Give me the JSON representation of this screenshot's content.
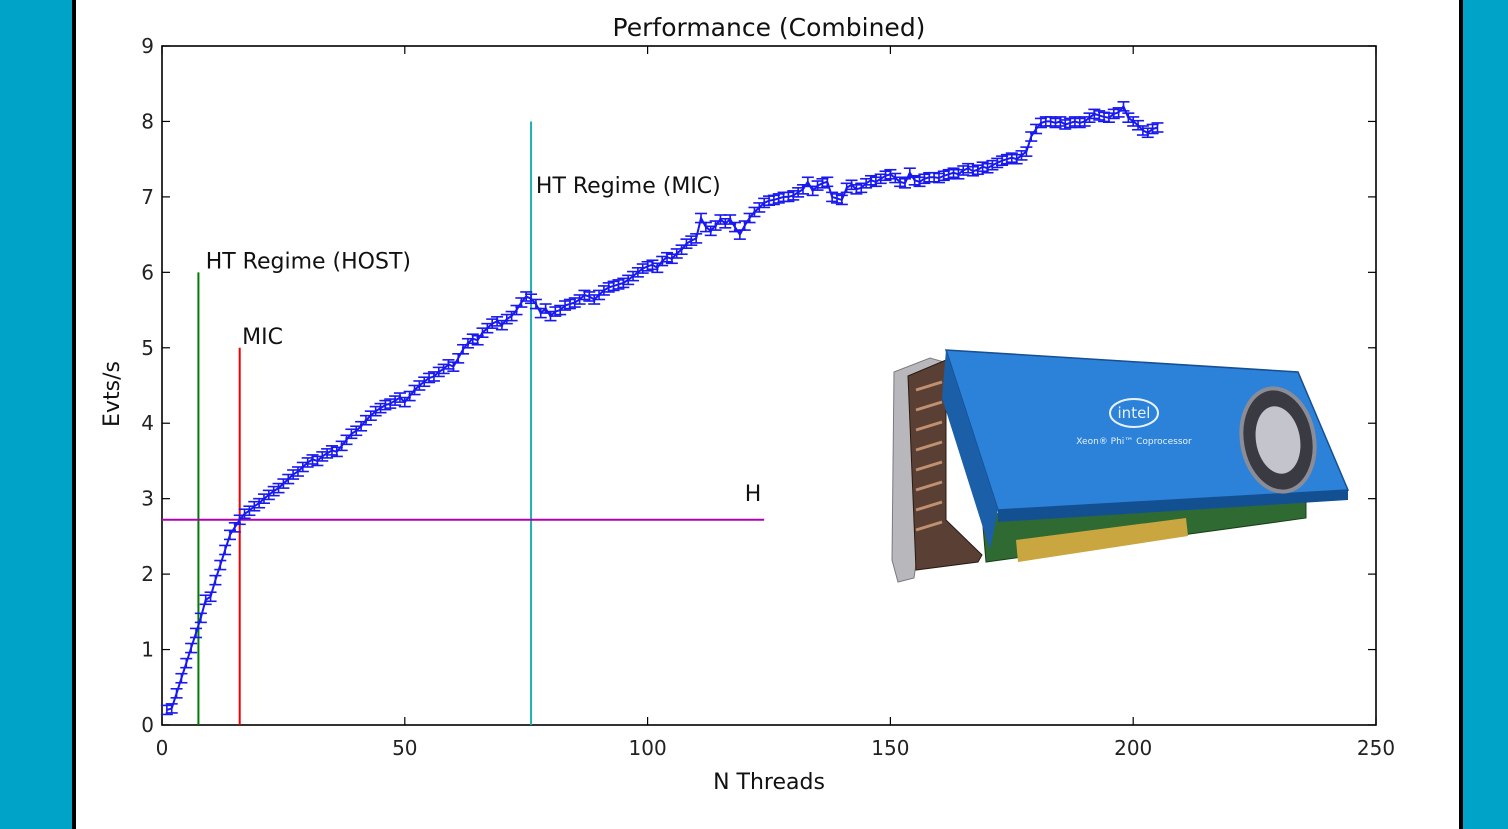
{
  "colors": {
    "frame": "#00a3c8",
    "series": "#1818f0",
    "host_line": "#007a00",
    "mic_line": "#ee0000",
    "mic_ht_line": "#20b0b0",
    "host_rate": "#b000b0"
  },
  "chart_data": {
    "type": "line",
    "title": "Performance (Combined)",
    "xlabel": "N Threads",
    "ylabel": "Evts/s",
    "xlim": [
      0,
      250
    ],
    "ylim": [
      0,
      9
    ],
    "xticks": [
      0,
      50,
      100,
      150,
      200,
      250
    ],
    "yticks": [
      0,
      1,
      2,
      3,
      4,
      5,
      6,
      7,
      8,
      9
    ],
    "grid": false,
    "series": [
      {
        "name": "",
        "style": "line with error bars",
        "error": 0.06,
        "points": [
          [
            1,
            0.2
          ],
          [
            2,
            0.22
          ],
          [
            3,
            0.42
          ],
          [
            4,
            0.62
          ],
          [
            5,
            0.82
          ],
          [
            6,
            1.02
          ],
          [
            7,
            1.22
          ],
          [
            8,
            1.42
          ],
          [
            9,
            1.66
          ],
          [
            10,
            1.7
          ],
          [
            11,
            1.92
          ],
          [
            12,
            2.12
          ],
          [
            13,
            2.32
          ],
          [
            14,
            2.52
          ],
          [
            15,
            2.62
          ],
          [
            16,
            2.72
          ],
          [
            17,
            2.8
          ],
          [
            18,
            2.84
          ],
          [
            19,
            2.9
          ],
          [
            20,
            2.94
          ],
          [
            21,
            3.0
          ],
          [
            22,
            3.05
          ],
          [
            23,
            3.1
          ],
          [
            24,
            3.14
          ],
          [
            25,
            3.2
          ],
          [
            26,
            3.26
          ],
          [
            27,
            3.32
          ],
          [
            28,
            3.36
          ],
          [
            29,
            3.42
          ],
          [
            30,
            3.48
          ],
          [
            31,
            3.52
          ],
          [
            32,
            3.5
          ],
          [
            33,
            3.56
          ],
          [
            34,
            3.6
          ],
          [
            35,
            3.64
          ],
          [
            36,
            3.62
          ],
          [
            37,
            3.7
          ],
          [
            38,
            3.78
          ],
          [
            39,
            3.86
          ],
          [
            40,
            3.9
          ],
          [
            41,
            3.96
          ],
          [
            42,
            4.04
          ],
          [
            43,
            4.1
          ],
          [
            44,
            4.16
          ],
          [
            45,
            4.2
          ],
          [
            46,
            4.24
          ],
          [
            47,
            4.26
          ],
          [
            48,
            4.3
          ],
          [
            49,
            4.34
          ],
          [
            50,
            4.28
          ],
          [
            51,
            4.36
          ],
          [
            52,
            4.44
          ],
          [
            53,
            4.5
          ],
          [
            54,
            4.55
          ],
          [
            55,
            4.6
          ],
          [
            56,
            4.62
          ],
          [
            57,
            4.68
          ],
          [
            58,
            4.72
          ],
          [
            59,
            4.78
          ],
          [
            60,
            4.75
          ],
          [
            61,
            4.86
          ],
          [
            62,
            4.98
          ],
          [
            63,
            5.06
          ],
          [
            64,
            5.12
          ],
          [
            65,
            5.1
          ],
          [
            66,
            5.2
          ],
          [
            67,
            5.26
          ],
          [
            68,
            5.32
          ],
          [
            69,
            5.35
          ],
          [
            70,
            5.3
          ],
          [
            71,
            5.38
          ],
          [
            72,
            5.42
          ],
          [
            73,
            5.5
          ],
          [
            74,
            5.6
          ],
          [
            75,
            5.68
          ],
          [
            76,
            5.65
          ],
          [
            77,
            5.58
          ],
          [
            78,
            5.46
          ],
          [
            79,
            5.52
          ],
          [
            80,
            5.42
          ],
          [
            81,
            5.48
          ],
          [
            82,
            5.5
          ],
          [
            83,
            5.56
          ],
          [
            84,
            5.58
          ],
          [
            85,
            5.6
          ],
          [
            86,
            5.64
          ],
          [
            87,
            5.7
          ],
          [
            88,
            5.68
          ],
          [
            89,
            5.64
          ],
          [
            90,
            5.7
          ],
          [
            91,
            5.76
          ],
          [
            92,
            5.8
          ],
          [
            93,
            5.82
          ],
          [
            94,
            5.84
          ],
          [
            95,
            5.86
          ],
          [
            96,
            5.9
          ],
          [
            97,
            5.95
          ],
          [
            98,
            6.0
          ],
          [
            99,
            6.05
          ],
          [
            100,
            6.08
          ],
          [
            101,
            6.1
          ],
          [
            102,
            6.06
          ],
          [
            103,
            6.15
          ],
          [
            104,
            6.2
          ],
          [
            105,
            6.18
          ],
          [
            106,
            6.25
          ],
          [
            107,
            6.3
          ],
          [
            108,
            6.38
          ],
          [
            109,
            6.42
          ],
          [
            110,
            6.45
          ],
          [
            111,
            6.72
          ],
          [
            112,
            6.6
          ],
          [
            113,
            6.55
          ],
          [
            114,
            6.62
          ],
          [
            115,
            6.7
          ],
          [
            116,
            6.65
          ],
          [
            117,
            6.7
          ],
          [
            118,
            6.6
          ],
          [
            119,
            6.5
          ],
          [
            120,
            6.62
          ],
          [
            121,
            6.72
          ],
          [
            122,
            6.8
          ],
          [
            123,
            6.86
          ],
          [
            124,
            6.92
          ],
          [
            125,
            6.95
          ],
          [
            126,
            6.96
          ],
          [
            127,
            6.98
          ],
          [
            128,
            7.0
          ],
          [
            129,
            7.0
          ],
          [
            130,
            7.02
          ],
          [
            131,
            7.06
          ],
          [
            132,
            7.1
          ],
          [
            133,
            7.2
          ],
          [
            134,
            7.08
          ],
          [
            135,
            7.15
          ],
          [
            136,
            7.18
          ],
          [
            137,
            7.2
          ],
          [
            138,
            7.0
          ],
          [
            139,
            6.98
          ],
          [
            140,
            6.96
          ],
          [
            141,
            7.12
          ],
          [
            142,
            7.16
          ],
          [
            143,
            7.1
          ],
          [
            144,
            7.12
          ],
          [
            145,
            7.18
          ],
          [
            146,
            7.22
          ],
          [
            147,
            7.2
          ],
          [
            148,
            7.24
          ],
          [
            149,
            7.28
          ],
          [
            150,
            7.3
          ],
          [
            151,
            7.25
          ],
          [
            152,
            7.2
          ],
          [
            153,
            7.18
          ],
          [
            154,
            7.32
          ],
          [
            155,
            7.22
          ],
          [
            156,
            7.2
          ],
          [
            157,
            7.24
          ],
          [
            158,
            7.26
          ],
          [
            159,
            7.26
          ],
          [
            160,
            7.25
          ],
          [
            161,
            7.28
          ],
          [
            162,
            7.3
          ],
          [
            163,
            7.32
          ],
          [
            164,
            7.3
          ],
          [
            165,
            7.35
          ],
          [
            166,
            7.38
          ],
          [
            167,
            7.34
          ],
          [
            168,
            7.36
          ],
          [
            169,
            7.4
          ],
          [
            170,
            7.38
          ],
          [
            171,
            7.42
          ],
          [
            172,
            7.45
          ],
          [
            173,
            7.48
          ],
          [
            174,
            7.5
          ],
          [
            175,
            7.52
          ],
          [
            176,
            7.5
          ],
          [
            177,
            7.55
          ],
          [
            178,
            7.6
          ],
          [
            179,
            7.8
          ],
          [
            180,
            7.9
          ],
          [
            181,
            7.98
          ],
          [
            182,
            8.0
          ],
          [
            183,
            8.0
          ],
          [
            184,
            7.98
          ],
          [
            185,
            8.0
          ],
          [
            186,
            7.96
          ],
          [
            187,
            7.98
          ],
          [
            188,
            8.0
          ],
          [
            189,
            7.98
          ],
          [
            190,
            8.0
          ],
          [
            191,
            8.05
          ],
          [
            192,
            8.1
          ],
          [
            193,
            8.08
          ],
          [
            194,
            8.06
          ],
          [
            195,
            8.05
          ],
          [
            196,
            8.1
          ],
          [
            197,
            8.12
          ],
          [
            198,
            8.2
          ],
          [
            199,
            8.05
          ],
          [
            200,
            8.0
          ],
          [
            201,
            7.95
          ],
          [
            202,
            7.88
          ],
          [
            203,
            7.85
          ],
          [
            204,
            7.9
          ],
          [
            205,
            7.92
          ]
        ]
      }
    ],
    "reference_lines": [
      {
        "orientation": "vertical",
        "x": 7.5,
        "y_from": 0,
        "y_to": 6,
        "color": "#007a00",
        "label": "HT Regime (HOST)",
        "label_x": 9,
        "label_y": 6.05
      },
      {
        "orientation": "vertical",
        "x": 16,
        "y_from": 0,
        "y_to": 5,
        "color": "#ee0000",
        "label": "MIC",
        "label_x": 16.5,
        "label_y": 5.05
      },
      {
        "orientation": "vertical",
        "x": 76,
        "y_from": 0,
        "y_to": 8,
        "color": "#20b0b0",
        "label": "HT Regime (MIC)",
        "label_x": 77,
        "label_y": 7.05
      },
      {
        "orientation": "horizontal",
        "y": 2.72,
        "x_from": 0,
        "x_to": 124,
        "color": "#b000b0",
        "label": "H",
        "label_x": 120,
        "label_y": 2.97
      }
    ]
  },
  "product_image": {
    "brand": "intel",
    "caption": "Xeon® Phi™ Coprocessor"
  }
}
